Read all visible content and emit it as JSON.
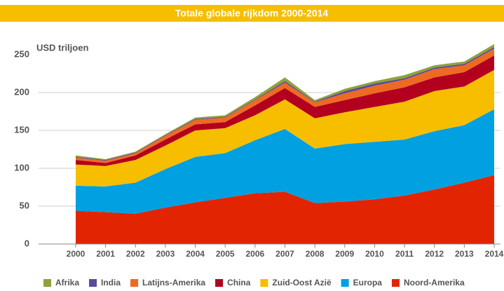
{
  "chart_data": {
    "type": "stacked-area",
    "title": "Totale globale rijkdom 2000-2014",
    "y_label": "USD triljoen",
    "x": [
      2000,
      2001,
      2002,
      2003,
      2004,
      2005,
      2006,
      2007,
      2008,
      2009,
      2010,
      2011,
      2012,
      2013,
      2014
    ],
    "xlim": [
      2000,
      2014
    ],
    "xticks": [
      2000,
      2001,
      2002,
      2003,
      2004,
      2005,
      2006,
      2007,
      2008,
      2009,
      2010,
      2011,
      2012,
      2013,
      2014
    ],
    "ylim": [
      0,
      250
    ],
    "yticks": [
      0,
      50,
      100,
      150,
      200,
      250
    ],
    "grid": true,
    "legend": "bottom",
    "series": [
      {
        "name": "Afrika",
        "color": "#8da23a",
        "values": [
          2,
          1,
          1,
          1,
          2,
          2,
          3,
          5,
          2,
          3,
          3,
          4,
          3,
          3,
          4
        ]
      },
      {
        "name": "India",
        "color": "#5a4b9a",
        "values": [
          1,
          1,
          1,
          1,
          1,
          1,
          1,
          2,
          1,
          3,
          3,
          2,
          2,
          2,
          2
        ]
      },
      {
        "name": "Latijns-Amerika",
        "color": "#ee6a22",
        "values": [
          3,
          3,
          3,
          5,
          6,
          6,
          7,
          7,
          6,
          9,
          10,
          10,
          11,
          9,
          9
        ]
      },
      {
        "name": "China",
        "color": "#b3001e",
        "values": [
          6,
          4,
          6,
          8,
          8,
          8,
          13,
          15,
          15,
          16,
          18,
          19,
          18,
          19,
          19
        ]
      },
      {
        "name": "Zuid-Oost Azië",
        "color": "#f7be00",
        "values": [
          28,
          27,
          30,
          31,
          35,
          33,
          33,
          39,
          40,
          42,
          46,
          50,
          53,
          51,
          52
        ]
      },
      {
        "name": "Europa",
        "color": "#00a0e1",
        "values": [
          33,
          34,
          41,
          51,
          60,
          59,
          70,
          83,
          72,
          76,
          76,
          74,
          77,
          76,
          87
        ]
      },
      {
        "name": "Noord-Amerika",
        "color": "#e32400",
        "values": [
          44,
          42,
          40,
          48,
          55,
          61,
          67,
          69,
          54,
          56,
          59,
          64,
          72,
          81,
          91
        ]
      }
    ]
  }
}
